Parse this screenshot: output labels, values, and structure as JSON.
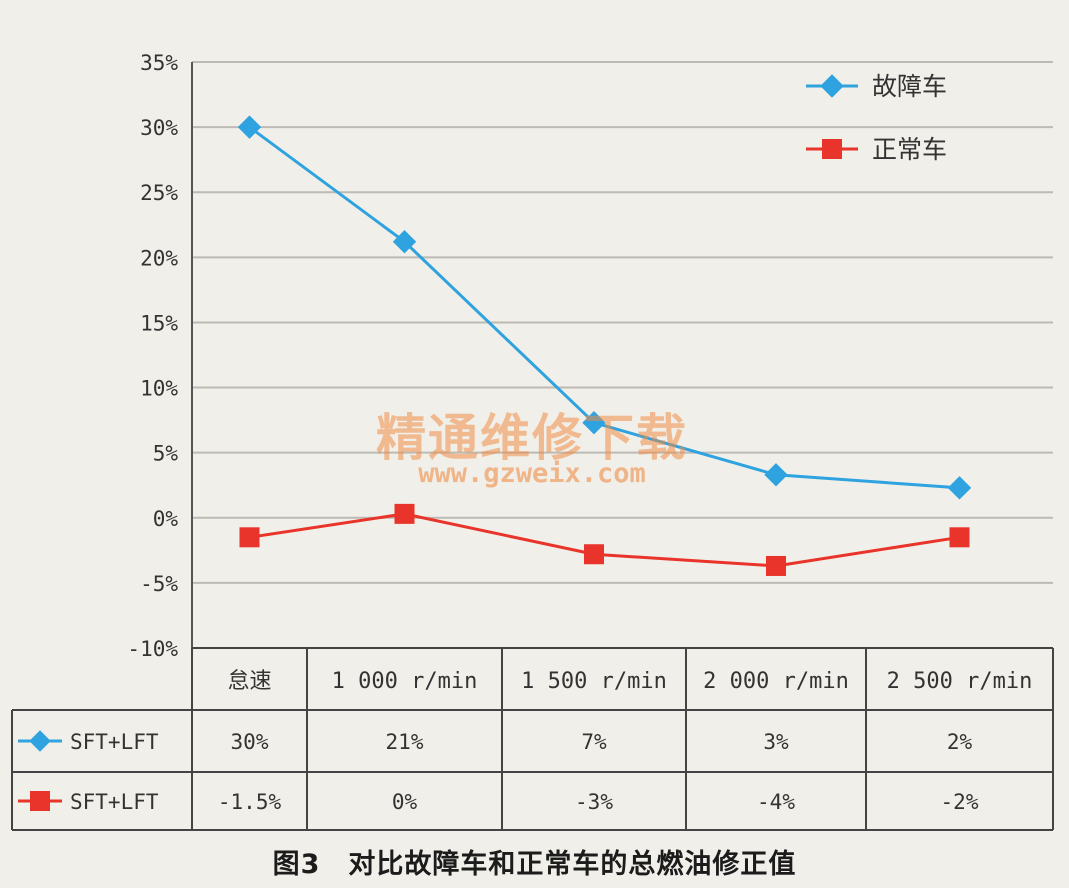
{
  "chart_data": {
    "type": "line",
    "title": "",
    "xlabel": "",
    "ylabel": "",
    "categories": [
      "怠速",
      "1 000 r/min",
      "1 500 r/min",
      "2 000 r/min",
      "2 500 r/min"
    ],
    "ylim": [
      -10,
      35
    ],
    "yticks": [
      35,
      30,
      25,
      20,
      15,
      10,
      5,
      0,
      -5,
      -10
    ],
    "ytick_labels": [
      "35%",
      "30%",
      "25%",
      "20%",
      "15%",
      "10%",
      "5%",
      "0%",
      "-5%",
      "-10%"
    ],
    "grid": true,
    "legend_position": "top-right",
    "series": [
      {
        "name": "故障车",
        "table_label": "SFT+LFT",
        "color": "#2ea3df",
        "marker": "diamond",
        "values": [
          30,
          21.2,
          7.3,
          3.3,
          2.3
        ],
        "table_values": [
          "30%",
          "21%",
          "7%",
          "3%",
          "2%"
        ]
      },
      {
        "name": "正常车",
        "table_label": "SFT+LFT",
        "color": "#e8342a",
        "marker": "square",
        "values": [
          -1.5,
          0.3,
          -2.8,
          -3.7,
          -1.5
        ],
        "table_values": [
          "-1.5%",
          "0%",
          "-3%",
          "-4%",
          "-2%"
        ]
      }
    ]
  },
  "caption": "图3　对比故障车和正常车的总燃油修正值",
  "watermark": {
    "brand": "精通维修下载",
    "url": "www.gzweix.com"
  }
}
